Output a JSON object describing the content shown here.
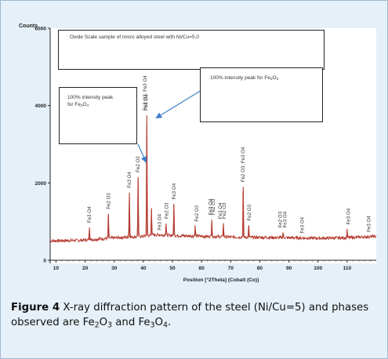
{
  "chart_data": {
    "type": "line",
    "y_axis_title": "Counts",
    "x_axis_title": "Position [°2Theta] (Cobalt (Co))",
    "xlim": [
      8,
      120
    ],
    "ylim": [
      0,
      6000
    ],
    "x_ticks": [
      10,
      20,
      30,
      40,
      50,
      60,
      70,
      80,
      90,
      100,
      110
    ],
    "y_ticks": [
      0,
      2000,
      4000,
      6000
    ],
    "line_color": "#b5392f",
    "baseline": [
      [
        8,
        500
      ],
      [
        20,
        520
      ],
      [
        30,
        580
      ],
      [
        36,
        600
      ],
      [
        40,
        620
      ],
      [
        45,
        660
      ],
      [
        50,
        640
      ],
      [
        60,
        620
      ],
      [
        70,
        600
      ],
      [
        80,
        590
      ],
      [
        90,
        580
      ],
      [
        100,
        570
      ],
      [
        110,
        580
      ],
      [
        120,
        620
      ]
    ],
    "peaks": [
      {
        "x": 21.5,
        "y": 850
      },
      {
        "x": 28.0,
        "y": 1200
      },
      {
        "x": 35.2,
        "y": 1750
      },
      {
        "x": 38.2,
        "y": 2150
      },
      {
        "x": 41.2,
        "y": 3750
      },
      {
        "x": 42.8,
        "y": 1350
      },
      {
        "x": 47.8,
        "y": 950
      },
      {
        "x": 50.5,
        "y": 1450
      },
      {
        "x": 57.8,
        "y": 880
      },
      {
        "x": 63.5,
        "y": 1050
      },
      {
        "x": 67.5,
        "y": 950
      },
      {
        "x": 74.3,
        "y": 1900
      },
      {
        "x": 76.2,
        "y": 900
      },
      {
        "x": 88.0,
        "y": 720
      },
      {
        "x": 110.0,
        "y": 800
      }
    ],
    "peak_labels": [
      {
        "text": "Fe3 O4",
        "x": 21.5
      },
      {
        "text": "Fe2 O3",
        "x": 28.0
      },
      {
        "text": "Fe3 O4",
        "x": 35.2
      },
      {
        "text": "Fe2 O3",
        "x": 38.2
      },
      {
        "text": "Fe3 O4",
        "x": 41.0
      },
      {
        "text": "Fe2 O3; Fe3 O4",
        "x": 40.6
      },
      {
        "text": "Fe3 O4",
        "x": 45.6
      },
      {
        "text": "Fe2 O3",
        "x": 48.0
      },
      {
        "text": "Fe3 O4",
        "x": 50.6
      },
      {
        "text": "Fe2 O3",
        "x": 58.3
      },
      {
        "text": "Fe3 O4",
        "x": 63.0
      },
      {
        "text": "Fe2 O3",
        "x": 64.0
      },
      {
        "text": "Fe3 O4",
        "x": 66.4
      },
      {
        "text": "Fe2 O3",
        "x": 67.8
      },
      {
        "text": "Fe2 O3; Fe3 O4",
        "x": 74.2
      },
      {
        "text": "Fe2 O3",
        "x": 76.4
      },
      {
        "text": "Fe2 O3",
        "x": 87.0
      },
      {
        "text": "Fe3 O4",
        "x": 88.6
      },
      {
        "text": "Fe3 O4",
        "x": 94.6
      },
      {
        "text": "Fe3 O4",
        "x": 110.4
      },
      {
        "text": "Fe3 O4",
        "x": 117.4
      }
    ],
    "annotations": {
      "sample_box": "Oxide Scale sample of micro alloyed steel with Ni/Cu=5.0",
      "left_box": {
        "line1": "100% intensity peak",
        "line2_prefix": "for Fe",
        "sub1": "3",
        "mid": "O",
        "sub2": "4"
      },
      "right_box": {
        "prefix": "100% intensity peak for Fe",
        "sub1": "2",
        "mid": "O",
        "sub2": "3"
      },
      "arrow_color": "#3f7fc9"
    }
  },
  "caption": {
    "label": "Figure 4",
    "text_1": " X-ray diffraction pattern of the steel (Ni/Cu=5) and phases observed are Fe",
    "sub_1": "2",
    "text_2": "O",
    "sub_2": "3",
    "text_3": " and Fe",
    "sub_3": "3",
    "text_4": "O",
    "sub_4": "4",
    "text_5": "."
  }
}
